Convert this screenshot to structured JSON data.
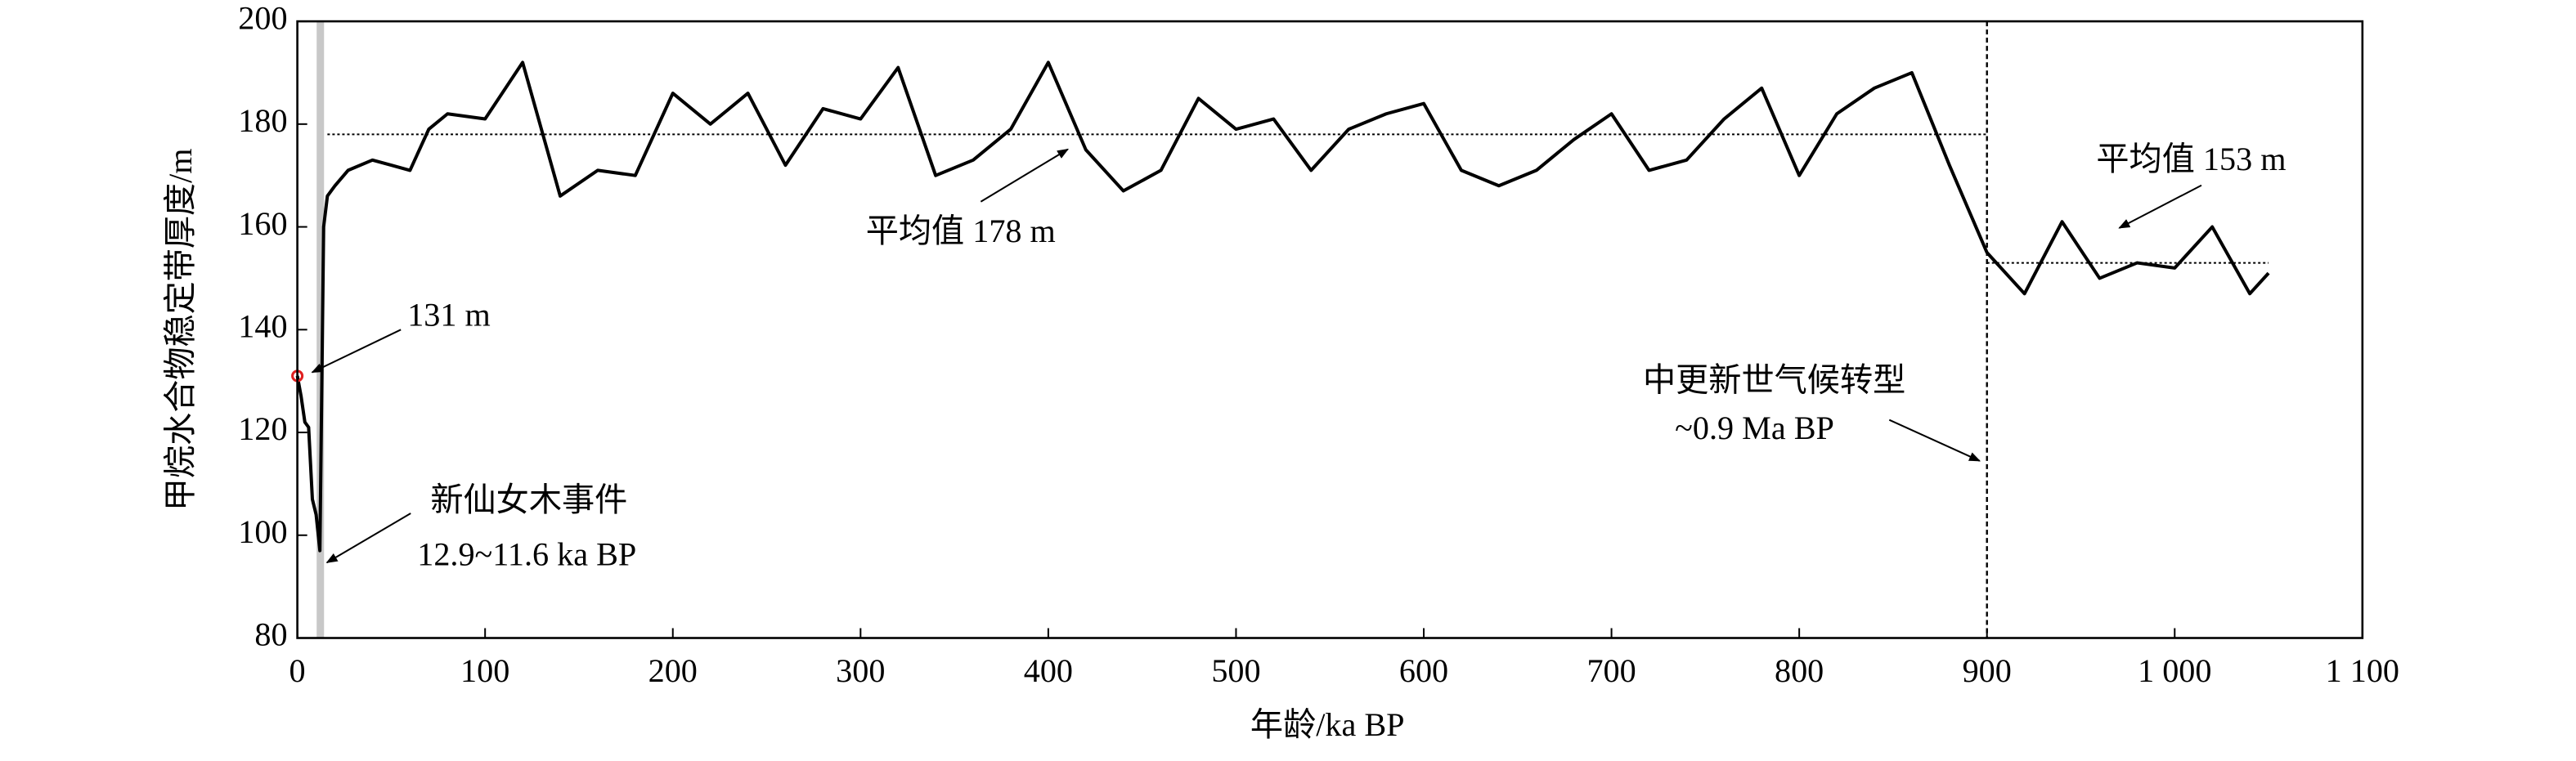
{
  "chart_data": {
    "type": "line",
    "x_label": "年龄/ka BP",
    "y_label": "甲烷水合物稳定带厚度/m",
    "xlim": [
      0,
      1100
    ],
    "xticks": [
      0,
      100,
      200,
      300,
      400,
      500,
      600,
      700,
      800,
      900,
      {
        "value": 1000,
        "label": "1 000"
      },
      {
        "value": 1100,
        "label": "1 100"
      }
    ],
    "ylim": [
      80,
      200
    ],
    "yticks": [
      80,
      100,
      120,
      140,
      160,
      180,
      200
    ],
    "series": [
      {
        "color": "#000000",
        "x": [
          0,
          2,
          4,
          6,
          8,
          10,
          12,
          14,
          16,
          20,
          27,
          40,
          50,
          60,
          70,
          80,
          100,
          120,
          140,
          160,
          180,
          200,
          220,
          240,
          260,
          280,
          300,
          320,
          340,
          360,
          380,
          400,
          420,
          440,
          460,
          480,
          500,
          520,
          540,
          560,
          580,
          600,
          620,
          640,
          660,
          680,
          700,
          720,
          740,
          760,
          780,
          800,
          820,
          840,
          860,
          880,
          900,
          920,
          940,
          960,
          980,
          1000,
          1020,
          1040,
          1050
        ],
        "values": [
          131,
          127,
          122,
          121,
          107,
          104,
          97,
          160,
          166,
          168,
          171,
          173,
          172,
          171,
          179,
          182,
          181,
          192,
          166,
          171,
          170,
          186,
          180,
          186,
          172,
          183,
          181,
          191,
          170,
          173,
          179,
          192,
          175,
          167,
          171,
          185,
          179,
          181,
          171,
          179,
          182,
          184,
          171,
          168,
          171,
          177,
          182,
          171,
          173,
          181,
          187,
          170,
          182,
          187,
          190,
          172,
          155,
          147,
          161,
          150,
          153,
          152,
          160,
          147,
          151
        ]
      }
    ],
    "highlight_color": "#e02020",
    "mean_lines": [
      {
        "value": 178,
        "x_start": 16,
        "x_end": 900,
        "label": "平均值 178 m"
      },
      {
        "value": 153,
        "x_start": 900,
        "x_end": 1050,
        "label": "平均值 153 m"
      }
    ],
    "band": {
      "x_start": 11.6,
      "x_end": 12.9,
      "color": "#c8c8c8"
    },
    "vline": 900,
    "annotations": {
      "first_point": "131 m",
      "event_name": "新仙女木事件",
      "event_range": "12.9~11.6 ka BP",
      "mpt_name": "中更新世气候转型",
      "mpt_age": "~0.9 Ma BP"
    }
  }
}
